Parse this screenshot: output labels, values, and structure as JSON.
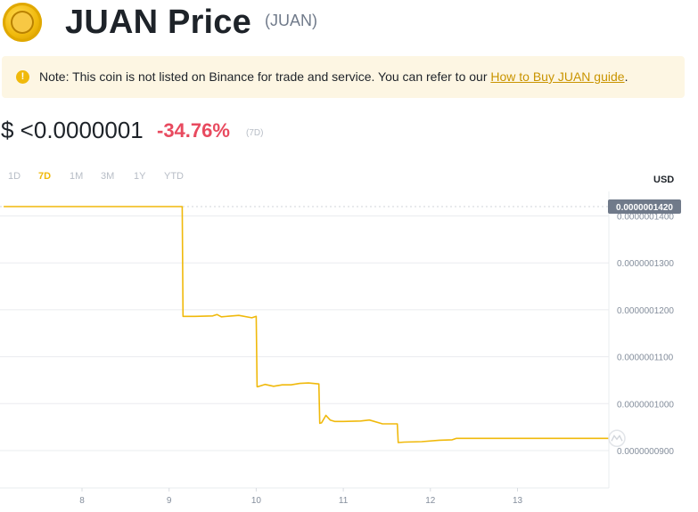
{
  "header": {
    "title": "JUAN Price",
    "symbol": "(JUAN)",
    "logo_text": "JUAN"
  },
  "note": {
    "icon": "!",
    "text": "Note: This coin is not listed on Binance for trade and service. You can refer to our ",
    "link": "How to Buy JUAN guide",
    "tail": "."
  },
  "price": {
    "value": "$ <0.0000001",
    "change": "-34.76%",
    "period": "(7D)"
  },
  "ranges": [
    "1D",
    "7D",
    "1M",
    "3M",
    "1Y",
    "YTD"
  ],
  "active_range": "7D",
  "currency": "USD",
  "colors": {
    "line": "#f0b90b",
    "negative": "#e84a5f",
    "tag_bg": "#707a8a"
  },
  "chart_data": {
    "type": "line",
    "x_ticks": [
      "8",
      "9",
      "10",
      "11",
      "12",
      "13"
    ],
    "y_ticks": [
      "0.0000001400",
      "0.0000001300",
      "0.0000001200",
      "0.0000001100",
      "0.0000001000",
      "0.0000000900"
    ],
    "current_price_label": "0.0000001420",
    "ylim": [
      8.2e-08,
      1.455e-07
    ],
    "xlim": [
      7.1,
      14.05
    ],
    "grid": true,
    "series": [
      {
        "x": [
          7.1,
          8.0,
          9.0,
          9.15,
          9.16,
          9.3,
          9.5,
          9.55,
          9.6,
          9.8,
          9.95,
          10.0,
          10.01,
          10.02,
          10.1,
          10.2,
          10.3,
          10.4,
          10.5,
          10.6,
          10.72,
          10.73,
          10.75,
          10.8,
          10.85,
          10.9,
          11.0,
          11.2,
          11.3,
          11.45,
          11.5,
          11.62,
          11.63,
          11.7,
          11.9,
          12.1,
          12.25,
          12.3,
          12.5,
          12.7,
          13.0,
          13.5,
          14.05
        ],
        "y": [
          1.42e-07,
          1.42e-07,
          1.42e-07,
          1.42e-07,
          1.186e-07,
          1.186e-07,
          1.187e-07,
          1.19e-07,
          1.185e-07,
          1.188e-07,
          1.183e-07,
          1.186e-07,
          1.036e-07,
          1.036e-07,
          1.041e-07,
          1.037e-07,
          1.04e-07,
          1.04e-07,
          1.043e-07,
          1.044e-07,
          1.042e-07,
          9.58e-08,
          9.59e-08,
          9.75e-08,
          9.65e-08,
          9.62e-08,
          9.62e-08,
          9.63e-08,
          9.65e-08,
          9.57e-08,
          9.57e-08,
          9.57e-08,
          9.17e-08,
          9.18e-08,
          9.19e-08,
          9.22e-08,
          9.23e-08,
          9.26e-08,
          9.26e-08,
          9.26e-08,
          9.26e-08,
          9.26e-08,
          9.26e-08
        ]
      }
    ]
  }
}
